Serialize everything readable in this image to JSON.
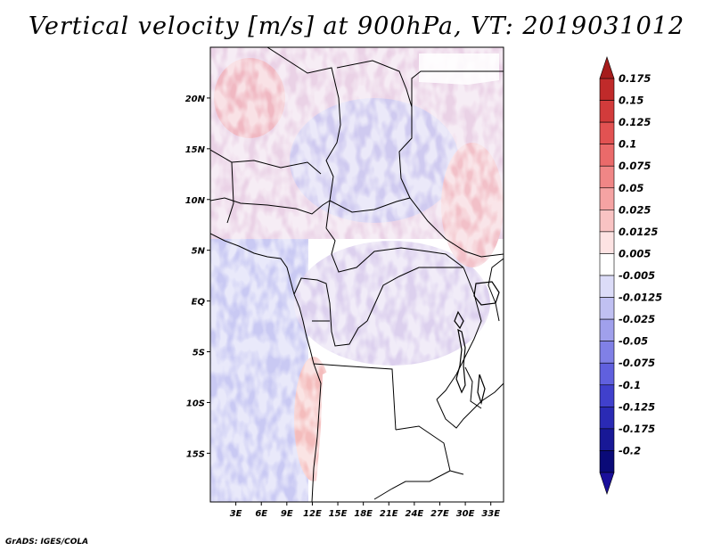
{
  "title": "Vertical velocity [m/s] at 900hPa, VT: 2019031012",
  "credit": "GrADS: IGES/COLA",
  "map": {
    "lat_labels": [
      "20N",
      "15N",
      "10N",
      "5N",
      "EQ",
      "5S",
      "10S",
      "15S"
    ],
    "lat_values": [
      20,
      15,
      10,
      5,
      0,
      -5,
      -10,
      -15
    ],
    "lon_labels": [
      "3E",
      "6E",
      "9E",
      "12E",
      "15E",
      "18E",
      "21E",
      "24E",
      "27E",
      "30E",
      "33E"
    ],
    "lon_values": [
      3,
      6,
      9,
      12,
      15,
      18,
      21,
      24,
      27,
      30,
      33
    ],
    "lon_range": [
      0,
      34.5
    ],
    "lat_range": [
      -19.8,
      25
    ],
    "field": "Vertical velocity",
    "units": "m/s",
    "level": "900hPa",
    "valid_time": "2019031012"
  },
  "colorbar": {
    "labels": [
      "0.175",
      "0.15",
      "0.125",
      "0.1",
      "0.075",
      "0.05",
      "0.025",
      "0.0125",
      "0.005",
      "-0.005",
      "-0.0125",
      "-0.025",
      "-0.05",
      "-0.075",
      "-0.1",
      "-0.125",
      "-0.175",
      "-0.2"
    ],
    "colors": [
      "#a51c1c",
      "#c02a2a",
      "#d23b3b",
      "#e25252",
      "#ea6a6a",
      "#f08686",
      "#f5a3a3",
      "#f9c3c3",
      "#fde3e3",
      "#ffffff",
      "#dcdcf8",
      "#c0c0f2",
      "#a0a0ec",
      "#8080e6",
      "#6060de",
      "#4040cc",
      "#2a2ab4",
      "#181896",
      "#0a0a78"
    ],
    "top_arrow_color": "#a51c1c",
    "bottom_arrow_color": "#1a0f9a"
  }
}
